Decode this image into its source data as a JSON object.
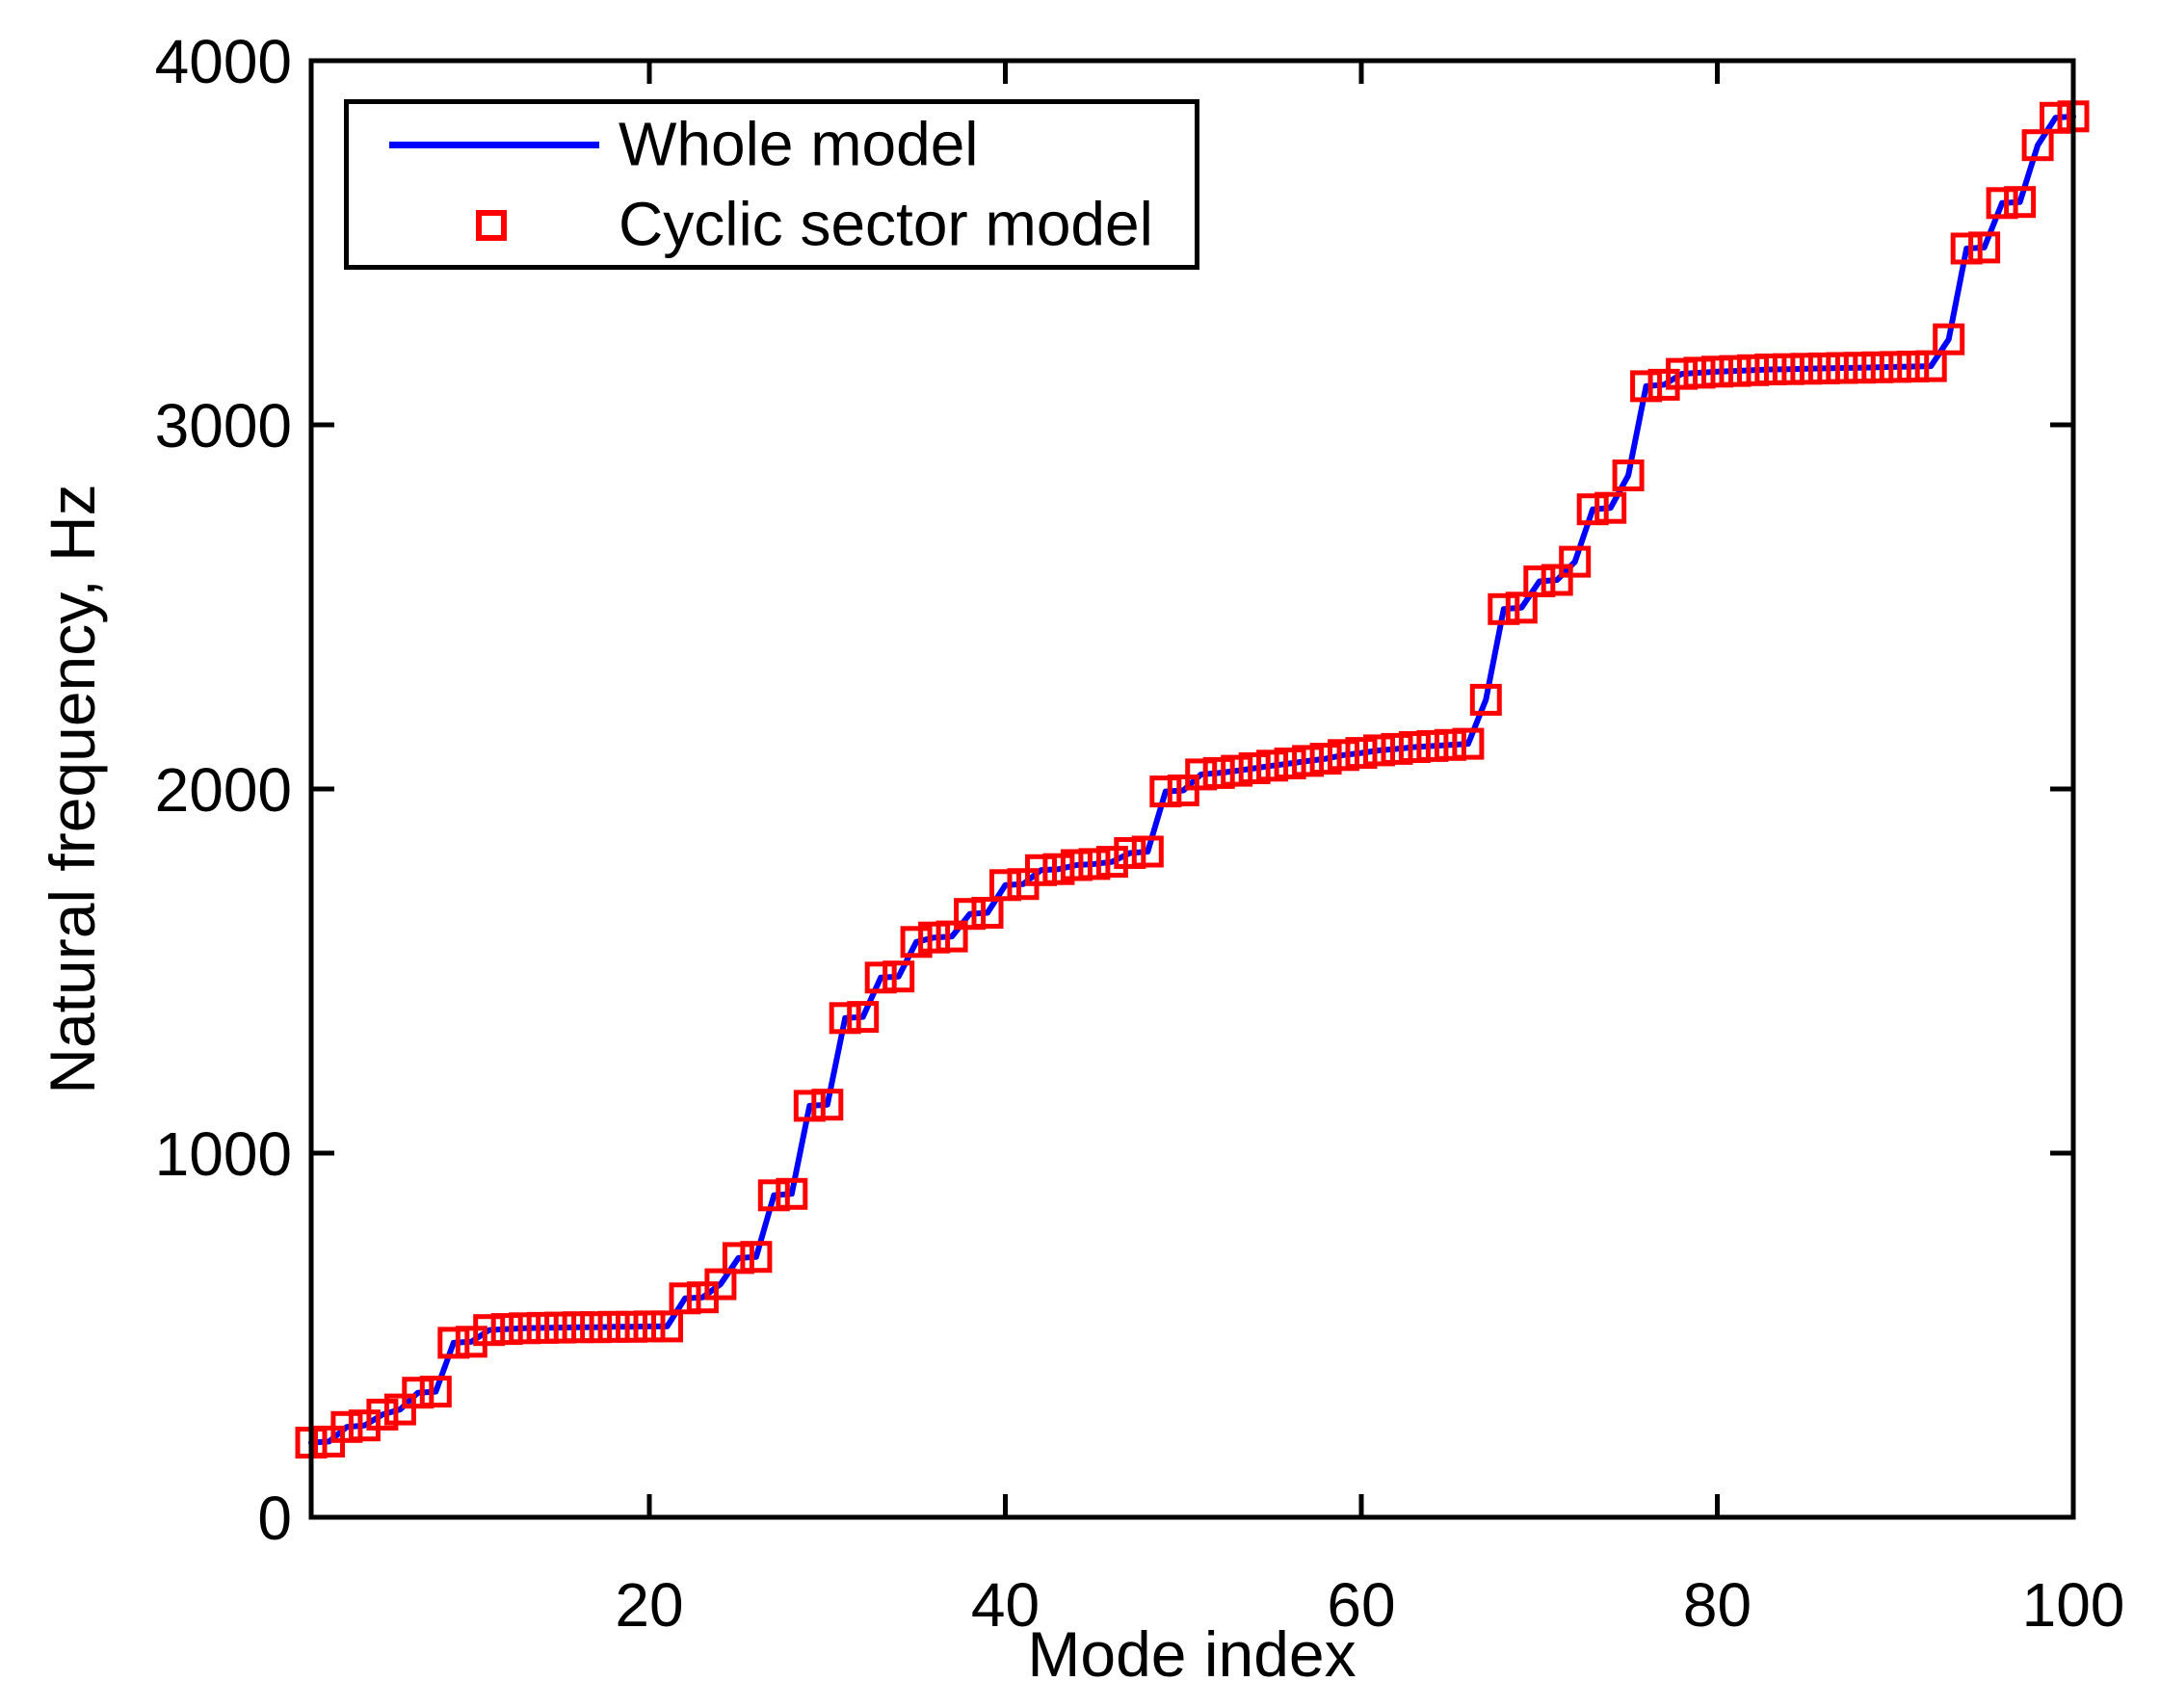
{
  "figure": {
    "background": "#FFFFFF",
    "axis_color": "#000000"
  },
  "chart_data": {
    "type": "line",
    "title": "",
    "xlabel": "Mode index",
    "ylabel": "Natural frequency, Hz",
    "xlim": [
      1,
      100
    ],
    "ylim": [
      0,
      4000
    ],
    "x_ticks": [
      20,
      40,
      60,
      80,
      100
    ],
    "y_ticks": [
      0,
      1000,
      2000,
      3000,
      4000
    ],
    "grid": false,
    "legend_position": "top-left",
    "x": {
      "start": 1,
      "end": 100,
      "step": 1
    },
    "series": [
      {
        "name": "Whole model",
        "style": "solid-line",
        "color": "#0000FF",
        "values_ref": "frequencies"
      },
      {
        "name": "Cyclic sector model",
        "style": "open-square-markers",
        "color": "#FF0000",
        "values_ref": "frequencies"
      }
    ],
    "frequencies": [
      205,
      208,
      248,
      252,
      282,
      296,
      342,
      345,
      479,
      482,
      514,
      517,
      519,
      520,
      521,
      522,
      522,
      523,
      523,
      524,
      524,
      601,
      604,
      640,
      712,
      715,
      884,
      888,
      1130,
      1133,
      1371,
      1374,
      1482,
      1485,
      1580,
      1592,
      1595,
      1657,
      1660,
      1736,
      1739,
      1777,
      1780,
      1791,
      1794,
      1800,
      1824,
      1828,
      1993,
      1996,
      2040,
      2044,
      2050,
      2057,
      2064,
      2070,
      2077,
      2083,
      2093,
      2099,
      2106,
      2110,
      2115,
      2118,
      2121,
      2124,
      2245,
      2494,
      2498,
      2570,
      2574,
      2624,
      2768,
      2772,
      2861,
      3106,
      3110,
      3140,
      3143,
      3146,
      3148,
      3150,
      3152,
      3153,
      3154,
      3155,
      3156,
      3157,
      3158,
      3159,
      3160,
      3161,
      3235,
      3484,
      3487,
      3609,
      3612,
      3768,
      3843,
      3847
    ]
  }
}
